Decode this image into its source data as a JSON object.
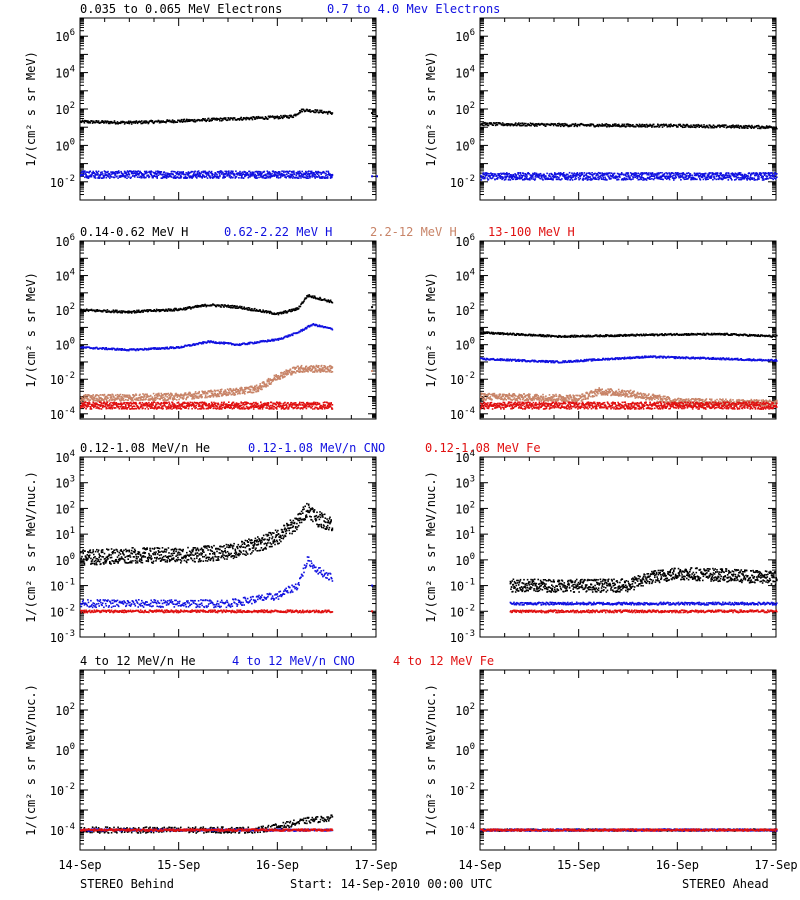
{
  "footer": {
    "left": "STEREO Behind",
    "center": "Start: 14-Sep-2010 00:00 UTC",
    "right": "STEREO Ahead"
  },
  "x_ticks": [
    "14-Sep",
    "15-Sep",
    "16-Sep",
    "17-Sep"
  ],
  "colors": {
    "black": "#000000",
    "blue": "#1010e0",
    "tan": "#c88468",
    "red": "#e01010"
  },
  "rows": [
    {
      "legend": [
        {
          "text": "0.035 to 0.065 MeV Electrons",
          "color": "black"
        },
        {
          "text": "0.7 to 4.0 Mev Electrons",
          "color": "blue"
        }
      ],
      "ylabel": "1/(cm² s sr MeV)"
    },
    {
      "legend": [
        {
          "text": "0.14-0.62 MeV H",
          "color": "black"
        },
        {
          "text": "0.62-2.22 MeV H",
          "color": "blue"
        },
        {
          "text": "2.2-12 MeV H",
          "color": "tan"
        },
        {
          "text": "13-100 MeV H",
          "color": "red"
        }
      ],
      "ylabel": "1/(cm² s sr MeV)"
    },
    {
      "legend": [
        {
          "text": "0.12-1.08 MeV/n He",
          "color": "black"
        },
        {
          "text": "0.12-1.08 MeV/n CNO",
          "color": "blue"
        },
        {
          "text": "0.12-1.08 MeV Fe",
          "color": "red"
        }
      ],
      "ylabel": "1/(cm² s sr MeV/nuc.)"
    },
    {
      "legend": [
        {
          "text": "4 to 12 MeV/n He",
          "color": "black"
        },
        {
          "text": "4 to 12 MeV/n CNO",
          "color": "blue"
        },
        {
          "text": "4 to 12 MeV Fe",
          "color": "red"
        }
      ],
      "ylabel": "1/(cm² s sr MeV/nuc.)"
    }
  ],
  "chart_data": [
    {
      "type": "scatter",
      "panel": "electrons-behind",
      "scale": "log",
      "ylim": [
        0.001,
        10000000
      ],
      "yticks": [
        "10^-2",
        "10^0",
        "10^2",
        "10^4",
        "10^6"
      ],
      "xlim": [
        0,
        3
      ],
      "x_unit": "days from 14-Sep-2010 00:00 UTC",
      "series": [
        {
          "name": "0.035 to 0.065 MeV Electrons",
          "color": "black",
          "spread": 0.08,
          "points": [
            [
              0,
              20
            ],
            [
              0.5,
              18
            ],
            [
              1,
              22
            ],
            [
              1.5,
              28
            ],
            [
              2,
              35
            ],
            [
              2.15,
              40
            ],
            [
              2.25,
              90
            ],
            [
              2.4,
              75
            ],
            [
              2.55,
              60
            ]
          ]
        },
        {
          "name": "0.7 to 4.0 Mev Electrons",
          "color": "blue",
          "spread": 0.2,
          "points": [
            [
              0,
              0.025
            ],
            [
              1,
              0.025
            ],
            [
              2,
              0.025
            ],
            [
              2.55,
              0.025
            ]
          ]
        }
      ],
      "fragments": [
        {
          "color": "black",
          "points": [
            [
              2.95,
              60
            ],
            [
              3.0,
              40
            ]
          ]
        },
        {
          "color": "blue",
          "points": [
            [
              2.95,
              0.02
            ],
            [
              3.0,
              0.02
            ]
          ]
        }
      ]
    },
    {
      "type": "scatter",
      "panel": "electrons-ahead",
      "scale": "log",
      "ylim": [
        0.001,
        10000000
      ],
      "yticks": [
        "10^-2",
        "10^0",
        "10^2",
        "10^4",
        "10^6"
      ],
      "xlim": [
        0,
        3
      ],
      "series": [
        {
          "name": "0.035 to 0.065 MeV Electrons",
          "color": "black",
          "spread": 0.08,
          "points": [
            [
              0,
              15
            ],
            [
              1,
              13
            ],
            [
              2,
              12
            ],
            [
              3,
              10
            ]
          ]
        },
        {
          "name": "0.7 to 4.0 Mev Electrons",
          "color": "blue",
          "spread": 0.2,
          "points": [
            [
              0,
              0.02
            ],
            [
              3,
              0.02
            ]
          ]
        }
      ]
    },
    {
      "type": "scatter",
      "panel": "protons-behind",
      "scale": "log",
      "ylim": [
        5e-05,
        1000000
      ],
      "yticks": [
        "10^-4",
        "10^-2",
        "10^0",
        "10^2",
        "10^4",
        "10^6"
      ],
      "xlim": [
        0,
        3
      ],
      "series": [
        {
          "name": "0.14-0.62 MeV H",
          "color": "black",
          "spread": 0.07,
          "points": [
            [
              0,
              100
            ],
            [
              0.5,
              80
            ],
            [
              1,
              110
            ],
            [
              1.3,
              200
            ],
            [
              1.6,
              150
            ],
            [
              2,
              60
            ],
            [
              2.2,
              120
            ],
            [
              2.3,
              700
            ],
            [
              2.4,
              500
            ],
            [
              2.55,
              300
            ]
          ]
        },
        {
          "name": "0.62-2.22 MeV H",
          "color": "blue",
          "spread": 0.05,
          "points": [
            [
              0,
              0.7
            ],
            [
              0.5,
              0.5
            ],
            [
              1,
              0.7
            ],
            [
              1.3,
              1.5
            ],
            [
              1.6,
              1
            ],
            [
              2,
              2
            ],
            [
              2.2,
              5
            ],
            [
              2.35,
              15
            ],
            [
              2.55,
              8
            ]
          ]
        },
        {
          "name": "2.2-12 MeV H",
          "color": "tan",
          "spread": 0.2,
          "points": [
            [
              0,
              0.0008
            ],
            [
              1,
              0.001
            ],
            [
              1.6,
              0.002
            ],
            [
              1.8,
              0.003
            ],
            [
              2,
              0.015
            ],
            [
              2.2,
              0.04
            ],
            [
              2.55,
              0.04
            ]
          ]
        },
        {
          "name": "13-100 MeV H",
          "color": "red",
          "spread": 0.2,
          "points": [
            [
              0,
              0.0003
            ],
            [
              2.55,
              0.0003
            ]
          ]
        }
      ],
      "fragments": [
        {
          "color": "black",
          "points": [
            [
              2.95,
              150
            ]
          ]
        },
        {
          "color": "tan",
          "points": [
            [
              2.95,
              0.03
            ]
          ]
        }
      ]
    },
    {
      "type": "scatter",
      "panel": "protons-ahead",
      "scale": "log",
      "ylim": [
        5e-05,
        1000000
      ],
      "yticks": [
        "10^-4",
        "10^-2",
        "10^0",
        "10^2",
        "10^4",
        "10^6"
      ],
      "xlim": [
        0,
        3
      ],
      "series": [
        {
          "name": "0.14-0.62 MeV H",
          "color": "black",
          "spread": 0.05,
          "points": [
            [
              0,
              5
            ],
            [
              0.8,
              3
            ],
            [
              1.5,
              3.5
            ],
            [
              2,
              4
            ],
            [
              2.5,
              4
            ],
            [
              3,
              3
            ]
          ]
        },
        {
          "name": "0.62-2.22 MeV H",
          "color": "blue",
          "spread": 0.05,
          "points": [
            [
              0,
              0.15
            ],
            [
              0.8,
              0.1
            ],
            [
              1.3,
              0.15
            ],
            [
              1.7,
              0.2
            ],
            [
              2.5,
              0.15
            ],
            [
              3,
              0.12
            ]
          ]
        },
        {
          "name": "2.2-12 MeV H",
          "color": "tan",
          "spread": 0.2,
          "points": [
            [
              0,
              0.001
            ],
            [
              1,
              0.0008
            ],
            [
              1.2,
              0.002
            ],
            [
              1.5,
              0.0015
            ],
            [
              2,
              0.0005
            ],
            [
              3,
              0.0004
            ]
          ]
        },
        {
          "name": "13-100 MeV H",
          "color": "red",
          "spread": 0.2,
          "points": [
            [
              0,
              0.0003
            ],
            [
              3,
              0.0003
            ]
          ]
        }
      ]
    },
    {
      "type": "scatter",
      "panel": "heavy-ions-behind",
      "scale": "log",
      "ylim": [
        0.001,
        10000
      ],
      "yticks": [
        "10^-3",
        "10^-2",
        "10^-1",
        "10^0",
        "10^1",
        "10^2",
        "10^3",
        "10^4"
      ],
      "xlim": [
        0,
        3
      ],
      "series": [
        {
          "name": "0.12-1.08 MeV/n He",
          "color": "black",
          "spread": 0.3,
          "points": [
            [
              0,
              1.2
            ],
            [
              0.5,
              1.5
            ],
            [
              1,
              1.5
            ],
            [
              1.5,
              2
            ],
            [
              1.8,
              4
            ],
            [
              2,
              8
            ],
            [
              2.2,
              30
            ],
            [
              2.3,
              100
            ],
            [
              2.4,
              40
            ],
            [
              2.55,
              25
            ]
          ]
        },
        {
          "name": "0.12-1.08 MeV/n CNO",
          "color": "blue",
          "spread": 0.15,
          "points": [
            [
              0,
              0.02
            ],
            [
              1.5,
              0.02
            ],
            [
              2,
              0.04
            ],
            [
              2.2,
              0.1
            ],
            [
              2.3,
              1
            ],
            [
              2.4,
              0.4
            ],
            [
              2.55,
              0.2
            ]
          ]
        },
        {
          "name": "0.12-1.08 MeV Fe",
          "color": "red",
          "spread": 0.05,
          "points": [
            [
              0,
              0.01
            ],
            [
              2.55,
              0.01
            ]
          ]
        }
      ],
      "fragments": [
        {
          "color": "black",
          "points": [
            [
              2.95,
              20
            ]
          ]
        },
        {
          "color": "blue",
          "points": [
            [
              2.95,
              0.1
            ]
          ]
        },
        {
          "color": "red",
          "points": [
            [
              2.95,
              0.01
            ]
          ]
        }
      ]
    },
    {
      "type": "scatter",
      "panel": "heavy-ions-ahead",
      "scale": "log",
      "ylim": [
        0.001,
        10000
      ],
      "yticks": [
        "10^-3",
        "10^-2",
        "10^-1",
        "10^0",
        "10^1",
        "10^2",
        "10^3",
        "10^4"
      ],
      "xlim": [
        0,
        3
      ],
      "series": [
        {
          "name": "0.12-1.08 MeV/n He",
          "color": "black",
          "spread": 0.25,
          "points": [
            [
              0.3,
              0.1
            ],
            [
              1,
              0.1
            ],
            [
              1.5,
              0.1
            ],
            [
              1.7,
              0.2
            ],
            [
              2,
              0.3
            ],
            [
              2.5,
              0.25
            ],
            [
              3,
              0.2
            ]
          ]
        },
        {
          "name": "0.12-1.08 MeV/n CNO",
          "color": "blue",
          "spread": 0.05,
          "points": [
            [
              0.3,
              0.02
            ],
            [
              3,
              0.02
            ]
          ]
        },
        {
          "name": "0.12-1.08 MeV Fe",
          "color": "red",
          "spread": 0.05,
          "points": [
            [
              0.3,
              0.01
            ],
            [
              3,
              0.01
            ]
          ]
        }
      ]
    },
    {
      "type": "scatter",
      "panel": "high-energy-ions-behind",
      "scale": "log",
      "ylim": [
        1e-05,
        10000
      ],
      "yticks": [
        "10^-4",
        "10^-2",
        "10^0",
        "10^2"
      ],
      "xlim": [
        0,
        3
      ],
      "series": [
        {
          "name": "4 to 12 MeV/n He",
          "color": "black",
          "spread": 0.15,
          "points": [
            [
              0,
              0.0001
            ],
            [
              1.8,
              0.0001
            ],
            [
              2,
              0.00015
            ],
            [
              2.3,
              0.0003
            ],
            [
              2.55,
              0.0004
            ]
          ]
        },
        {
          "name": "4 to 12 MeV/n CNO",
          "color": "blue",
          "spread": 0.05,
          "points": [
            [
              0,
              0.0001
            ],
            [
              2.55,
              0.0001
            ]
          ]
        },
        {
          "name": "4 to 12 MeV Fe",
          "color": "red",
          "spread": 0.05,
          "points": [
            [
              0,
              0.0001
            ],
            [
              2.55,
              0.0001
            ]
          ]
        }
      ]
    },
    {
      "type": "scatter",
      "panel": "high-energy-ions-ahead",
      "scale": "log",
      "ylim": [
        1e-05,
        10000
      ],
      "yticks": [
        "10^-4",
        "10^-2",
        "10^0",
        "10^2"
      ],
      "xlim": [
        0,
        3
      ],
      "series": [
        {
          "name": "4 to 12 MeV/n He",
          "color": "black",
          "spread": 0.05,
          "points": [
            [
              0,
              0.0001
            ],
            [
              3,
              0.0001
            ]
          ]
        },
        {
          "name": "4 to 12 MeV/n CNO",
          "color": "blue",
          "spread": 0.05,
          "points": [
            [
              0,
              0.0001
            ],
            [
              3,
              0.0001
            ]
          ]
        },
        {
          "name": "4 to 12 MeV Fe",
          "color": "red",
          "spread": 0.05,
          "points": [
            [
              0,
              0.0001
            ],
            [
              3,
              0.0001
            ]
          ]
        }
      ]
    }
  ]
}
